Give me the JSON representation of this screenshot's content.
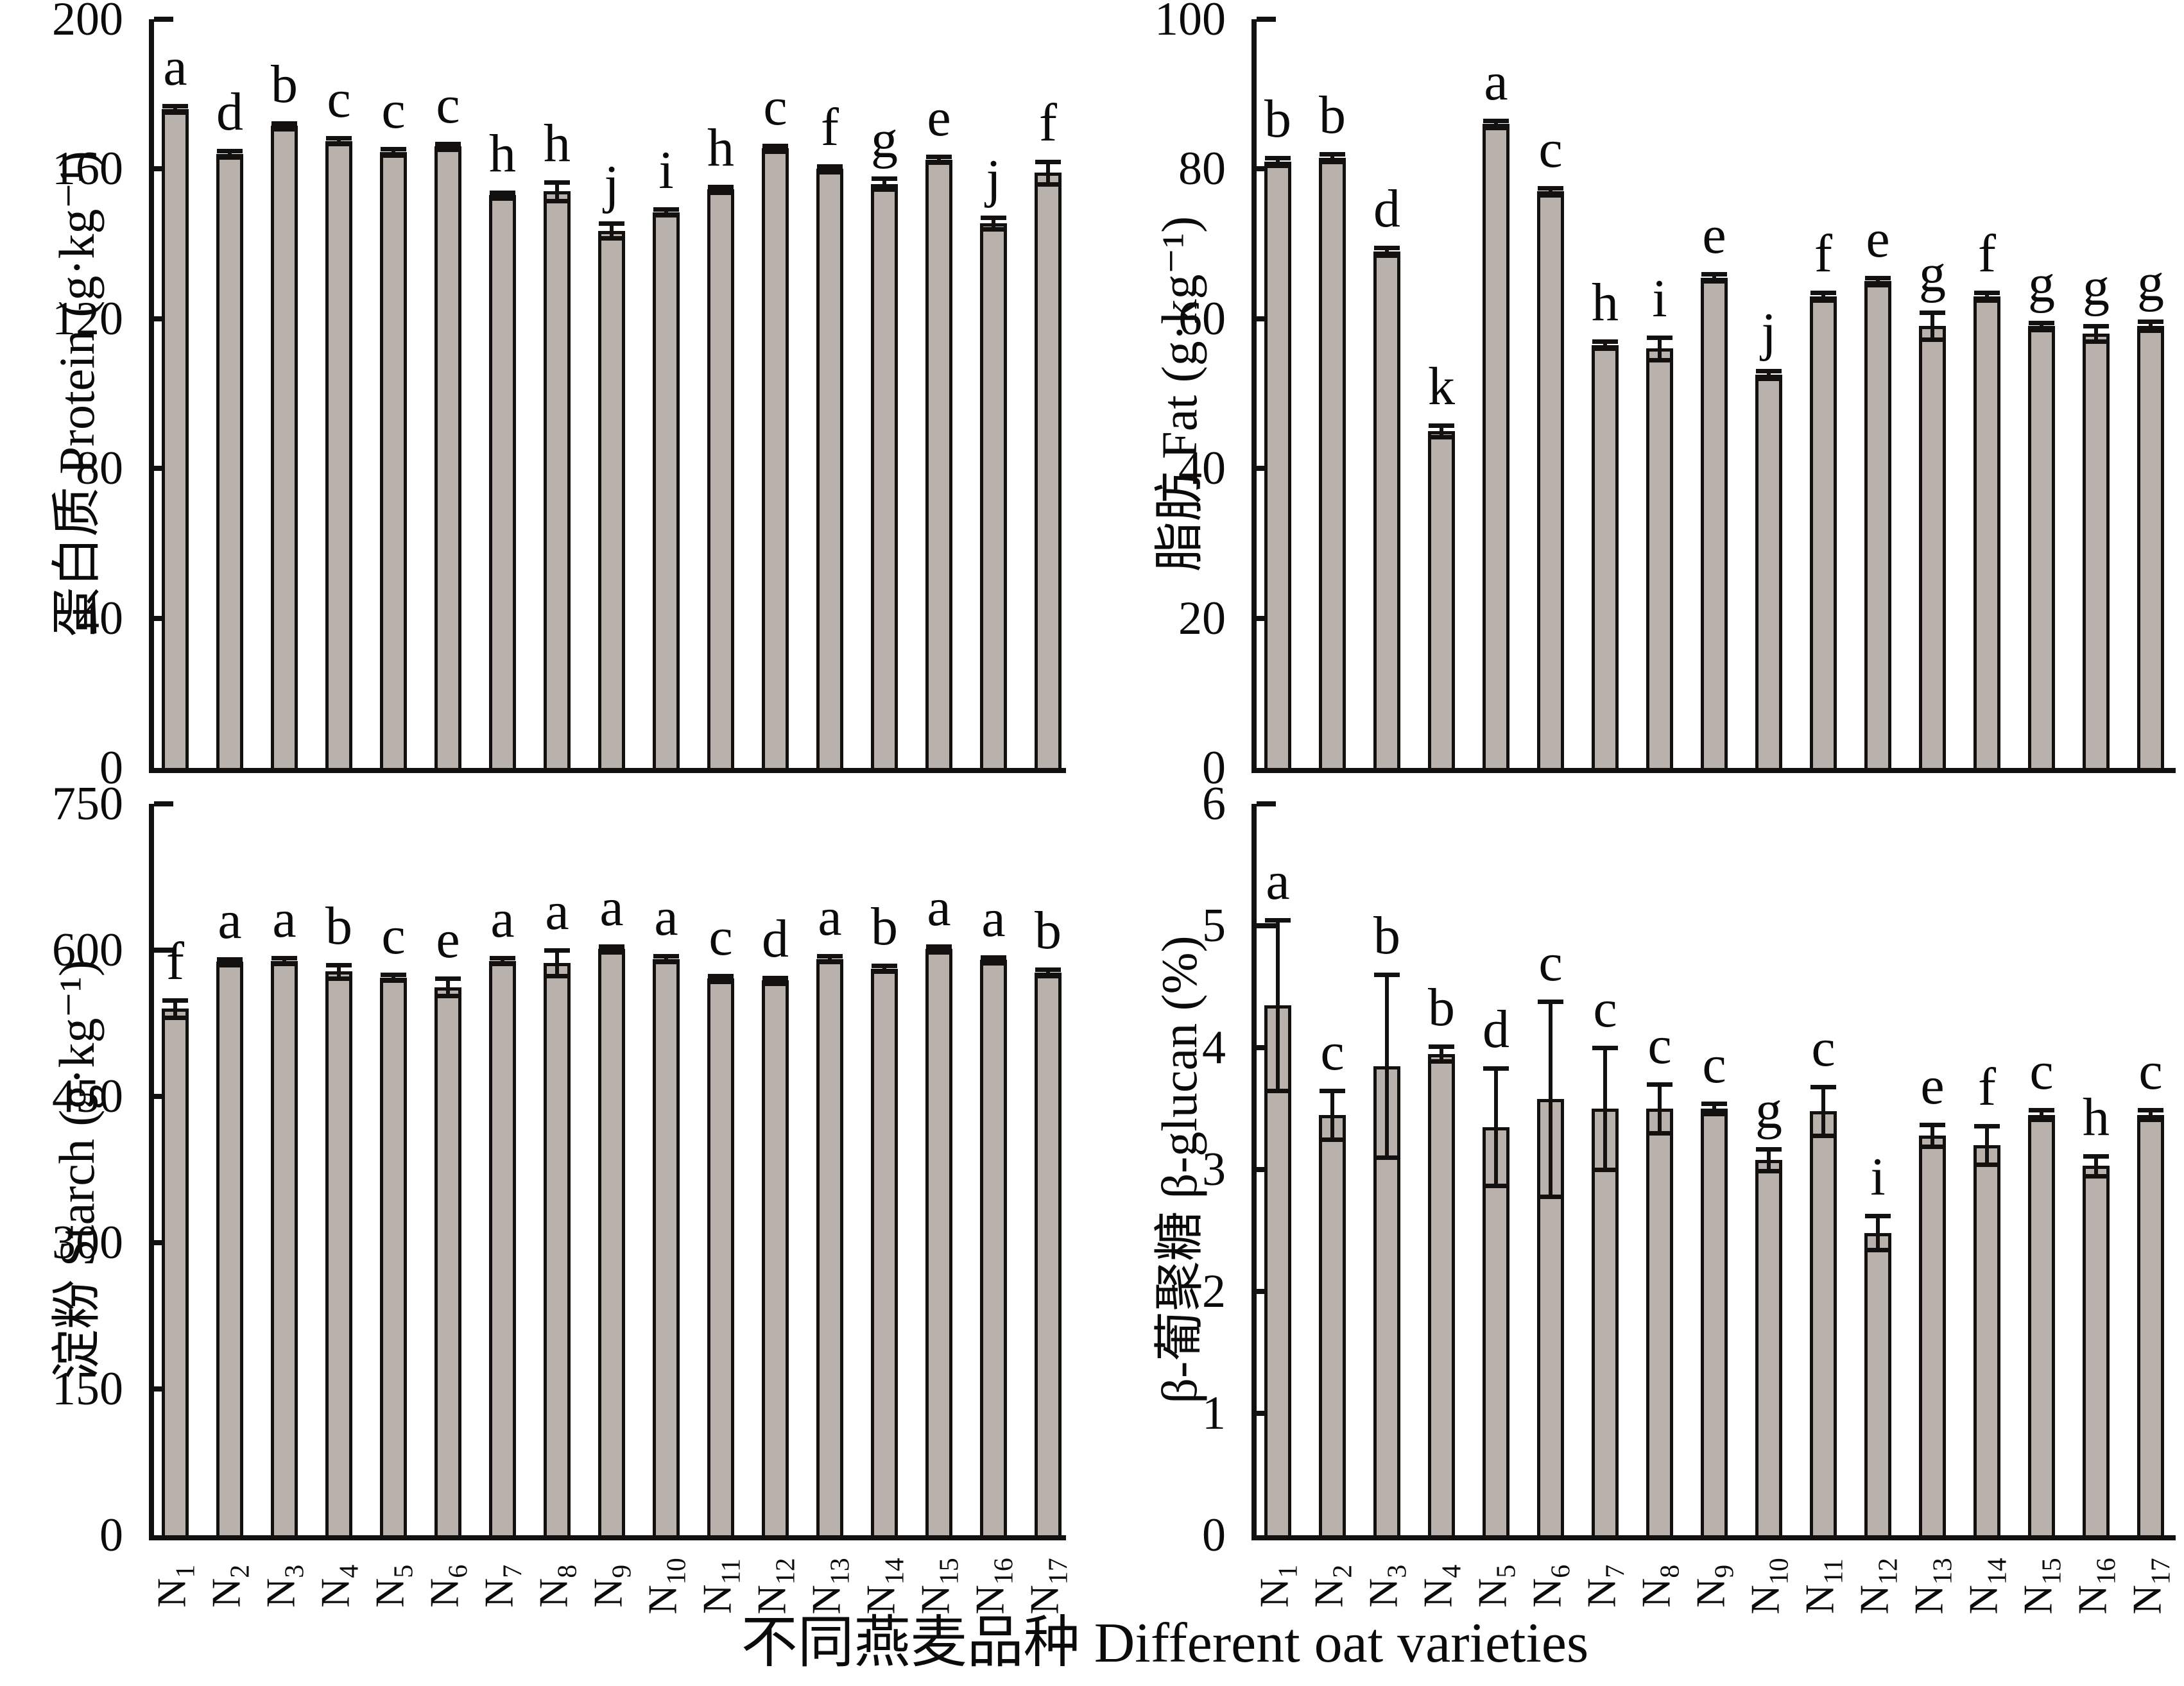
{
  "figure": {
    "xlabel": "不同燕麦品种 Different oat varieties",
    "bar_fill_color": "#b9b1ac",
    "bar_border_color": "#131110",
    "varieties": [
      {
        "base": "N",
        "sub": "1"
      },
      {
        "base": "N",
        "sub": "2"
      },
      {
        "base": "N",
        "sub": "3"
      },
      {
        "base": "N",
        "sub": "4"
      },
      {
        "base": "N",
        "sub": "5"
      },
      {
        "base": "N",
        "sub": "6"
      },
      {
        "base": "N",
        "sub": "7"
      },
      {
        "base": "N",
        "sub": "8"
      },
      {
        "base": "N",
        "sub": "9"
      },
      {
        "base": "N",
        "sub": "10"
      },
      {
        "base": "N",
        "sub": "11"
      },
      {
        "base": "N",
        "sub": "12"
      },
      {
        "base": "N",
        "sub": "13"
      },
      {
        "base": "N",
        "sub": "14"
      },
      {
        "base": "N",
        "sub": "15"
      },
      {
        "base": "N",
        "sub": "16"
      },
      {
        "base": "N",
        "sub": "17"
      }
    ]
  },
  "chart_data": [
    {
      "id": "protein",
      "type": "bar",
      "ylabel": "蛋白质 Protein (g·kg⁻¹)",
      "ylim": [
        0,
        200
      ],
      "yticks": [
        0,
        40,
        80,
        120,
        160,
        200
      ],
      "categories": [
        "N1",
        "N2",
        "N3",
        "N4",
        "N5",
        "N6",
        "N7",
        "N8",
        "N9",
        "N10",
        "N11",
        "N12",
        "N13",
        "N14",
        "N15",
        "N16",
        "N17"
      ],
      "values": [
        176,
        164,
        171.5,
        167.5,
        164.5,
        166,
        153,
        154,
        143.5,
        148.5,
        154.5,
        165.5,
        160,
        156,
        162.5,
        145.5,
        159
      ],
      "errors": [
        0.8,
        0.8,
        0.8,
        0.8,
        0.8,
        0.8,
        0.8,
        2.5,
        2,
        0.8,
        0.8,
        0.8,
        0.8,
        1.5,
        0.8,
        1.5,
        3
      ],
      "letters": [
        "a",
        "d",
        "b",
        "c",
        "c",
        "c",
        "h",
        "h",
        "j",
        "i",
        "h",
        "c",
        "f",
        "g",
        "e",
        "j",
        "f"
      ],
      "legend": "none",
      "grid": false
    },
    {
      "id": "fat",
      "type": "bar",
      "ylabel": "脂肪 Fat (g·kg⁻¹)",
      "ylim": [
        0,
        100
      ],
      "yticks": [
        0,
        20,
        40,
        60,
        80,
        100
      ],
      "categories": [
        "N1",
        "N2",
        "N3",
        "N4",
        "N5",
        "N6",
        "N7",
        "N8",
        "N9",
        "N10",
        "N11",
        "N12",
        "N13",
        "N14",
        "N15",
        "N16",
        "N17"
      ],
      "values": [
        81,
        81.5,
        69,
        45,
        86,
        77,
        56.5,
        56,
        65.5,
        52.5,
        63,
        65,
        59,
        63,
        59,
        58,
        59
      ],
      "errors": [
        0.5,
        0.5,
        0.5,
        0.8,
        0.5,
        0.5,
        0.5,
        1.5,
        0.5,
        0.5,
        0.5,
        0.5,
        1.8,
        0.5,
        0.5,
        1,
        0.6
      ],
      "letters": [
        "b",
        "b",
        "d",
        "k",
        "a",
        "c",
        "h",
        "i",
        "e",
        "j",
        "f",
        "e",
        "g",
        "f",
        "g",
        "g",
        "g"
      ],
      "legend": "none",
      "grid": false
    },
    {
      "id": "starch",
      "type": "bar",
      "ylabel": "淀粉 Starch (g·kg⁻¹)",
      "ylim": [
        0,
        750
      ],
      "yticks": [
        0,
        150,
        300,
        450,
        600,
        750
      ],
      "categories": [
        "N1",
        "N2",
        "N3",
        "N4",
        "N5",
        "N6",
        "N7",
        "N8",
        "N9",
        "N10",
        "N11",
        "N12",
        "N13",
        "N14",
        "N15",
        "N16",
        "N17"
      ],
      "values": [
        540,
        588,
        589,
        578,
        572,
        562,
        589,
        587,
        601,
        591,
        571,
        569,
        591,
        581,
        601,
        590,
        577
      ],
      "errors": [
        9,
        3,
        3,
        7,
        3,
        9,
        3,
        13,
        3,
        3,
        3,
        3,
        3,
        3,
        3,
        3,
        3
      ],
      "letters": [
        "f",
        "a",
        "a",
        "b",
        "c",
        "e",
        "a",
        "a",
        "a",
        "a",
        "c",
        "d",
        "a",
        "b",
        "a",
        "a",
        "b"
      ],
      "legend": "none",
      "grid": false
    },
    {
      "id": "beta_glucan",
      "type": "bar",
      "ylabel": "β-葡聚糖 β-glucan (%)",
      "ylim": [
        0,
        6
      ],
      "yticks": [
        0,
        1,
        2,
        3,
        4,
        5,
        6
      ],
      "categories": [
        "N1",
        "N2",
        "N3",
        "N4",
        "N5",
        "N6",
        "N7",
        "N8",
        "N9",
        "N10",
        "N11",
        "N12",
        "N13",
        "N14",
        "N15",
        "N16",
        "N17"
      ],
      "values": [
        4.35,
        3.45,
        3.85,
        3.95,
        3.35,
        3.58,
        3.5,
        3.5,
        3.5,
        3.08,
        3.48,
        2.48,
        3.28,
        3.2,
        3.45,
        3.03,
        3.45
      ],
      "errors": [
        0.7,
        0.2,
        0.75,
        0.06,
        0.48,
        0.8,
        0.5,
        0.2,
        0.04,
        0.09,
        0.2,
        0.14,
        0.09,
        0.16,
        0.04,
        0.08,
        0.04
      ],
      "letters": [
        "a",
        "c",
        "b",
        "b",
        "d",
        "c",
        "c",
        "c",
        "c",
        "g",
        "c",
        "i",
        "e",
        "f",
        "c",
        "h",
        "c"
      ],
      "legend": "none",
      "grid": false
    }
  ]
}
